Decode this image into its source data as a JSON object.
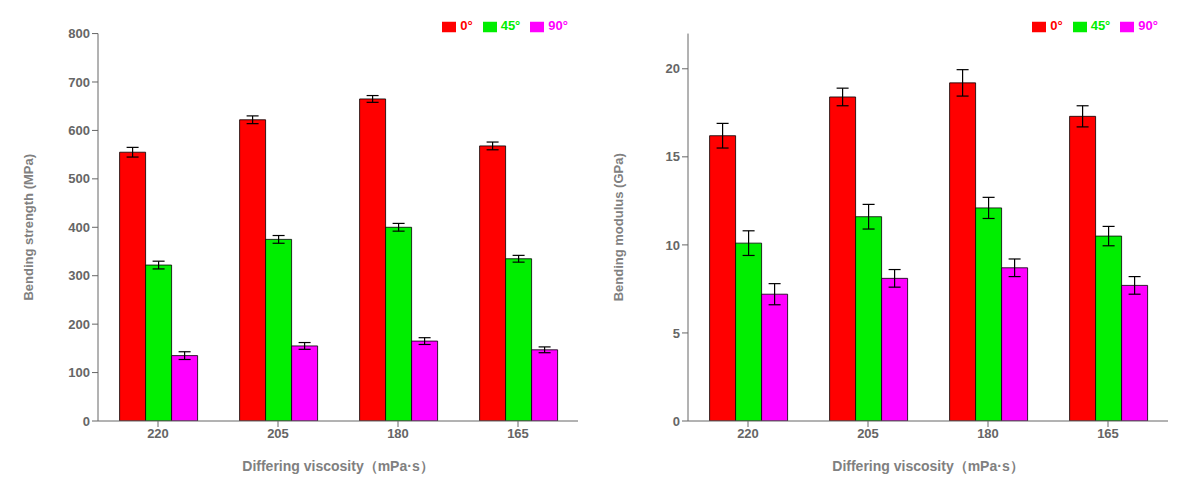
{
  "chart_data": [
    {
      "type": "bar",
      "categories": [
        "220",
        "205",
        "180",
        "165"
      ],
      "xlabel": "Differing viscosity（mPa·s）",
      "ylabel": "Bending strength (MPa)",
      "ylim": [
        0,
        800
      ],
      "yticks": [
        0,
        100,
        200,
        300,
        400,
        500,
        600,
        700,
        800
      ],
      "grid": false,
      "legend": "upper right",
      "series": [
        {
          "name": "0°",
          "color": "#FF0000",
          "values": [
            555,
            622,
            665,
            568
          ],
          "errors": [
            10,
            8,
            7,
            8
          ]
        },
        {
          "name": "45°",
          "color": "#00EE00",
          "values": [
            322,
            375,
            400,
            335
          ],
          "errors": [
            8,
            8,
            8,
            7
          ]
        },
        {
          "name": "90°",
          "color": "#FF00FF",
          "values": [
            135,
            155,
            165,
            147
          ],
          "errors": [
            8,
            7,
            7,
            6
          ]
        }
      ]
    },
    {
      "type": "bar",
      "categories": [
        "220",
        "205",
        "180",
        "165"
      ],
      "xlabel": "Differing viscosity（mPa·s）",
      "ylabel": "Bending modulus (GPa)",
      "ylim": [
        0,
        22
      ],
      "yticks": [
        0,
        5,
        10,
        15,
        20
      ],
      "grid": false,
      "legend": "upper right",
      "series": [
        {
          "name": "0°",
          "color": "#FF0000",
          "values": [
            16.2,
            18.4,
            19.2,
            17.3
          ],
          "errors": [
            0.7,
            0.5,
            0.75,
            0.6
          ]
        },
        {
          "name": "45°",
          "color": "#00EE00",
          "values": [
            10.1,
            11.6,
            12.1,
            10.5
          ],
          "errors": [
            0.7,
            0.7,
            0.6,
            0.55
          ]
        },
        {
          "name": "90°",
          "color": "#FF00FF",
          "values": [
            7.2,
            8.1,
            8.7,
            7.7
          ],
          "errors": [
            0.6,
            0.5,
            0.5,
            0.5
          ]
        }
      ]
    }
  ]
}
